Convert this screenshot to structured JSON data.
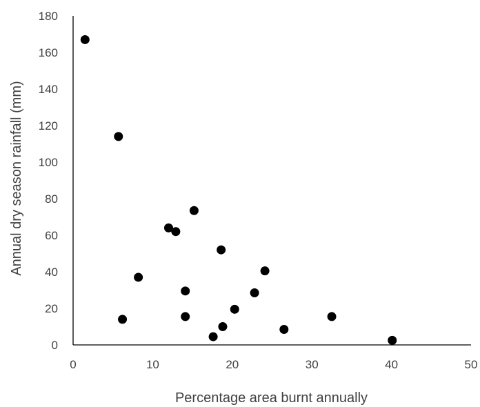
{
  "chart_data": {
    "type": "scatter",
    "title": "",
    "xlabel": "Percentage area burnt annually",
    "ylabel": "Annual dry season rainfall (mm)",
    "xlim": [
      0,
      50
    ],
    "ylim": [
      0,
      180
    ],
    "x_ticks": [
      0,
      10,
      20,
      30,
      40,
      50
    ],
    "y_ticks": [
      0,
      20,
      40,
      60,
      80,
      100,
      120,
      140,
      160,
      180
    ],
    "grid": false,
    "legend": "none",
    "marker_color": "#000000",
    "axis_color": "#000000",
    "points": [
      {
        "x": 1.5,
        "y": 167
      },
      {
        "x": 5.7,
        "y": 114
      },
      {
        "x": 6.2,
        "y": 14
      },
      {
        "x": 8.2,
        "y": 37
      },
      {
        "x": 12.0,
        "y": 64
      },
      {
        "x": 12.9,
        "y": 62
      },
      {
        "x": 14.1,
        "y": 29.5
      },
      {
        "x": 14.1,
        "y": 15.5
      },
      {
        "x": 15.2,
        "y": 73.5
      },
      {
        "x": 17.6,
        "y": 4.5
      },
      {
        "x": 18.6,
        "y": 52
      },
      {
        "x": 18.8,
        "y": 10
      },
      {
        "x": 20.3,
        "y": 19.5
      },
      {
        "x": 22.8,
        "y": 28.5
      },
      {
        "x": 24.1,
        "y": 40.5
      },
      {
        "x": 26.5,
        "y": 8.5
      },
      {
        "x": 32.5,
        "y": 15.5
      },
      {
        "x": 40.1,
        "y": 2.5
      }
    ]
  }
}
